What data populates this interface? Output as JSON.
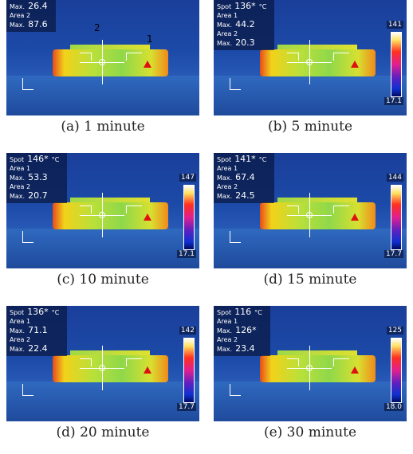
{
  "panels": [
    {
      "caption": "(a) 1 minute",
      "area1_max_label": "Max.",
      "area1_max": "26.4",
      "area2_label": "Area 2",
      "area2_max_label": "Max.",
      "area2_max": "87.6",
      "marker1": "2",
      "marker2": "1"
    },
    {
      "caption": "(b) 5 minute",
      "spot_label": "Spot",
      "spot_value": "136*",
      "unit": "°C",
      "area1_label": "Area 1",
      "area1_max_label": "Max.",
      "area1_max": "44.2",
      "area2_label": "Area 2",
      "area2_max_label": "Max.",
      "area2_max": "20.3",
      "scale_max": "141",
      "scale_min": "17.1"
    },
    {
      "caption": "(c) 10 minute",
      "spot_label": "Spot",
      "spot_value": "146*",
      "unit": "°C",
      "area1_label": "Area 1",
      "area1_max_label": "Max.",
      "area1_max": "53.3",
      "area2_label": "Area 2",
      "area2_max_label": "Max.",
      "area2_max": "20.7",
      "scale_max": "147",
      "scale_min": "17.1"
    },
    {
      "caption": "(d) 15 minute",
      "spot_label": "Spot",
      "spot_value": "141*",
      "unit": "°C",
      "area1_label": "Area 1",
      "area1_max_label": "Max.",
      "area1_max": "67.4",
      "area2_label": "Area 2",
      "area2_max_label": "Max.",
      "area2_max": "24.5",
      "scale_max": "144",
      "scale_min": "17.7"
    },
    {
      "caption": "(d) 20 minute",
      "spot_label": "Spot",
      "spot_value": "136*",
      "unit": "°C",
      "area1_label": "Area 1",
      "area1_max_label": "Max.",
      "area1_max": "71.1",
      "area2_label": "Area 2",
      "area2_max_label": "Max.",
      "area2_max": "22.4",
      "scale_max": "142",
      "scale_min": "17.7"
    },
    {
      "caption": "(e) 30 minute",
      "spot_label": "Spot",
      "spot_value": "116",
      "unit": "°C",
      "area1_label": "Area 1",
      "area1_max_label": "Max.",
      "area1_max": "126*",
      "area2_label": "Area 2",
      "area2_max_label": "Max.",
      "area2_max": "23.4",
      "scale_max": "125",
      "scale_min": "18.0"
    }
  ]
}
